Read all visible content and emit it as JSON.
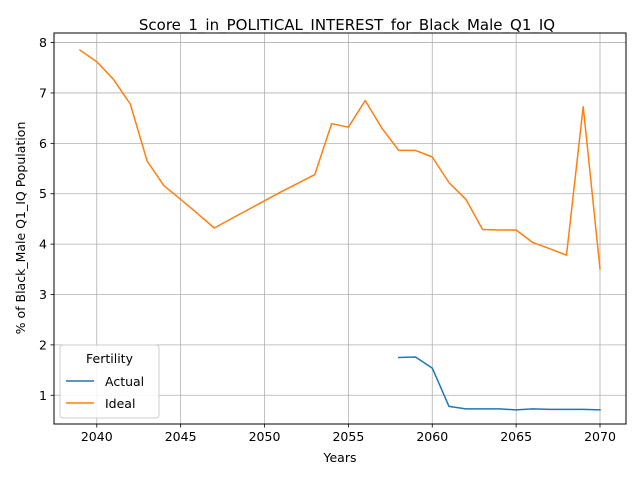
{
  "chart_data": {
    "type": "line",
    "title": "Score_1_in_POLITICAL_INTEREST_for_Black_Male_Q1_IQ",
    "xlabel": "Years",
    "ylabel": "% of Black_Male Q1_IQ Population",
    "xlim": [
      2037.45,
      2071.55
    ],
    "ylim": [
      0.43,
      8.19
    ],
    "xticks": [
      2040,
      2045,
      2050,
      2055,
      2060,
      2065,
      2070
    ],
    "yticks": [
      1,
      2,
      3,
      4,
      5,
      6,
      7,
      8
    ],
    "grid": true,
    "legend": {
      "title": "Fertility",
      "position": "lower-left"
    },
    "series": [
      {
        "name": "Actual",
        "color": "#1f77b4",
        "x": [
          2058,
          2059,
          2060,
          2061,
          2062,
          2063,
          2064,
          2065,
          2066,
          2067,
          2068,
          2069,
          2070
        ],
        "y": [
          1.75,
          1.76,
          1.54,
          0.78,
          0.73,
          0.73,
          0.73,
          0.71,
          0.73,
          0.72,
          0.72,
          0.72,
          0.71
        ]
      },
      {
        "name": "Ideal",
        "color": "#ff7f0e",
        "x": [
          2039,
          2040,
          2041,
          2042,
          2043,
          2044,
          2045,
          2046,
          2047,
          2048,
          2049,
          2050,
          2051,
          2052,
          2053,
          2054,
          2055,
          2056,
          2057,
          2058,
          2059,
          2060,
          2061,
          2062,
          2063,
          2064,
          2065,
          2066,
          2067,
          2068,
          2069,
          2070
        ],
        "y": [
          7.85,
          7.62,
          7.27,
          6.78,
          5.65,
          5.16,
          4.89,
          4.61,
          4.32,
          4.5,
          4.68,
          4.86,
          5.04,
          5.21,
          5.38,
          6.39,
          6.32,
          6.85,
          6.3,
          5.86,
          5.86,
          5.73,
          5.22,
          4.89,
          4.29,
          4.28,
          4.28,
          4.03,
          3.91,
          3.78,
          6.73,
          3.51
        ]
      }
    ]
  }
}
